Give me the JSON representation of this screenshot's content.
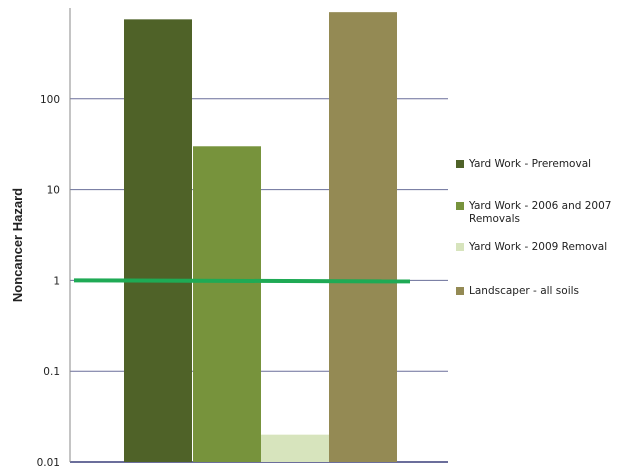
{
  "chart_data": {
    "type": "bar",
    "ylabel": "Noncancer Hazard",
    "yscale": "log",
    "ylim": [
      0.01,
      1000
    ],
    "ytick_values": [
      0.01,
      0.1,
      1,
      10,
      100
    ],
    "ytick_labels": [
      "0.01",
      "0.1",
      "1",
      "10",
      "100"
    ],
    "grid": true,
    "reference_line": {
      "value": 1,
      "color": "#1faa55"
    },
    "legend_position": "right",
    "series": [
      {
        "name": "Yard Work - Preremoval",
        "value": 750,
        "color": "#4f6228"
      },
      {
        "name": "Yard Work - 2006 and 2007 Removals",
        "value": 30,
        "color": "#77933c"
      },
      {
        "name": "Yard Work - 2009 Removal",
        "value": 0.02,
        "color": "#d7e4bd"
      },
      {
        "name": "Landscaper - all soils",
        "value": 900,
        "color": "#948a54"
      }
    ]
  }
}
